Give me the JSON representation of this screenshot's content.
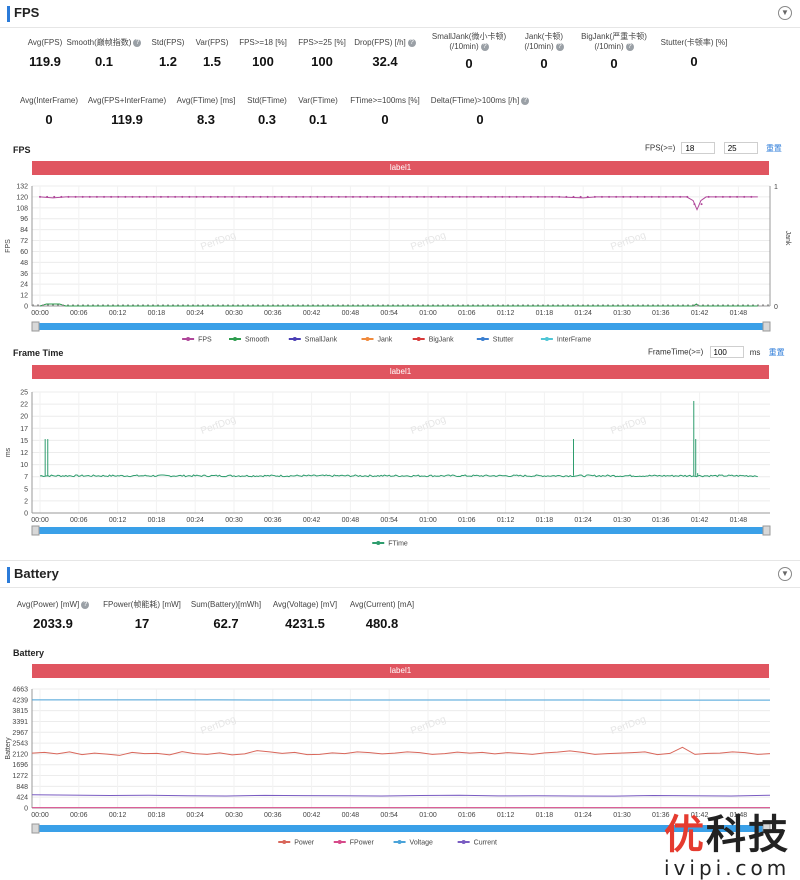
{
  "fps_section": {
    "title": "FPS",
    "collapse_icon": "chevron-down-icon"
  },
  "fps_metrics_row1": [
    {
      "label": "Avg(FPS)",
      "value": "119.9",
      "help": false
    },
    {
      "label": "Smooth(巅帧指数)",
      "value": "0.1",
      "help": true
    },
    {
      "label": "Std(FPS)",
      "value": "1.2",
      "help": false
    },
    {
      "label": "Var(FPS)",
      "value": "1.5",
      "help": false
    },
    {
      "label": "FPS>=18 [%]",
      "value": "100",
      "help": false
    },
    {
      "label": "FPS>=25 [%]",
      "value": "100",
      "help": false
    },
    {
      "label": "Drop(FPS) [/h]",
      "value": "32.4",
      "help": true
    },
    {
      "label": "SmallJank(微小卡顿)",
      "label2": "(/10min)",
      "value": "0",
      "help": true
    },
    {
      "label": "Jank(卡顿)",
      "label2": "(/10min)",
      "value": "0",
      "help": true
    },
    {
      "label": "BigJank(严重卡顿)",
      "label2": "(/10min)",
      "value": "0",
      "help": true
    },
    {
      "label": "Stutter(卡顿率) [%]",
      "value": "0",
      "help": false
    }
  ],
  "fps_metrics_row2": [
    {
      "label": "Avg(InterFrame)",
      "value": "0",
      "help": false
    },
    {
      "label": "Avg(FPS+InterFrame)",
      "value": "119.9",
      "help": false
    },
    {
      "label": "Avg(FTime) [ms]",
      "value": "8.3",
      "help": false
    },
    {
      "label": "Std(FTime)",
      "value": "0.3",
      "help": false
    },
    {
      "label": "Var(FTime)",
      "value": "0.1",
      "help": false
    },
    {
      "label": "FTime>=100ms [%]",
      "value": "0",
      "help": false
    },
    {
      "label": "Delta(FTime)>100ms [/h]",
      "value": "0",
      "help": true
    }
  ],
  "fps_chart": {
    "title": "FPS",
    "control_label": "FPS(>=)",
    "input1": "18",
    "input2": "25",
    "reset": "重置",
    "banner": "label1",
    "watermark": "PerfDog"
  },
  "frame_chart": {
    "title": "Frame Time",
    "control_label": "FrameTime(>=)",
    "input": "100",
    "unit": "ms",
    "reset": "重置",
    "banner": "label1"
  },
  "battery_section": {
    "title": "Battery",
    "collapse_icon": "chevron-down-icon"
  },
  "battery_metrics": [
    {
      "label": "Avg(Power) [mW]",
      "value": "2033.9",
      "help": true
    },
    {
      "label": "FPower(帧能耗) [mW]",
      "value": "17",
      "help": false
    },
    {
      "label": "Sum(Battery)[mWh]",
      "value": "62.7",
      "help": false
    },
    {
      "label": "Avg(Voltage) [mV]",
      "value": "4231.5",
      "help": false
    },
    {
      "label": "Avg(Current) [mA]",
      "value": "480.8",
      "help": false
    }
  ],
  "battery_chart": {
    "title": "Battery",
    "banner": "label1"
  },
  "logo": {
    "big_a": "优",
    "big_b": "科技",
    "small": "ivipi.com"
  },
  "chart_data": [
    {
      "type": "line",
      "title": "FPS",
      "ylabel": "FPS",
      "y2label": "Jank",
      "ylim": [
        0,
        132
      ],
      "yticks": [
        "0",
        "12",
        "24",
        "36",
        "48",
        "60",
        "72",
        "84",
        "96",
        "108",
        "120",
        "132"
      ],
      "y2ticks": [
        "0",
        "1"
      ],
      "y2lim": [
        0,
        1
      ],
      "xticks": [
        "00:00",
        "00:06",
        "00:12",
        "00:18",
        "00:24",
        "00:30",
        "00:36",
        "00:42",
        "00:48",
        "00:54",
        "01:00",
        "01:06",
        "01:12",
        "01:18",
        "01:24",
        "01:30",
        "01:36",
        "01:42",
        "01:48"
      ],
      "xlim_seconds": [
        0,
        111
      ],
      "grid": true,
      "legend_position": "bottom",
      "series": [
        {
          "name": "FPS",
          "color": "#b0479a",
          "points": [
            [
              0,
              120
            ],
            [
              2,
              119
            ],
            [
              4,
              120
            ],
            [
              10,
              120
            ],
            [
              20,
              120
            ],
            [
              30,
              120
            ],
            [
              40,
              120
            ],
            [
              50,
              120
            ],
            [
              60,
              120
            ],
            [
              70,
              120
            ],
            [
              80,
              120
            ],
            [
              84,
              119
            ],
            [
              86,
              120
            ],
            [
              95,
              120
            ],
            [
              100,
              120
            ],
            [
              101,
              116
            ],
            [
              101.6,
              106
            ],
            [
              102.2,
              116
            ],
            [
              103,
              120
            ],
            [
              110,
              120
            ],
            [
              111,
              120
            ]
          ]
        },
        {
          "name": "Smooth",
          "color": "#2e9d4e",
          "points": [
            [
              0,
              0
            ],
            [
              1,
              1
            ],
            [
              3,
              1
            ],
            [
              4,
              0
            ],
            [
              101,
              0
            ],
            [
              101.5,
              1
            ],
            [
              102,
              0
            ],
            [
              111,
              0
            ]
          ]
        },
        {
          "name": "SmallJank",
          "color": "#4a3fb5",
          "points": []
        },
        {
          "name": "Jank",
          "color": "#f08a3c",
          "points": []
        },
        {
          "name": "BigJank",
          "color": "#d83a3a",
          "points": []
        },
        {
          "name": "Stutter",
          "color": "#3b7fd1",
          "points": []
        },
        {
          "name": "InterFrame",
          "color": "#4fc6d6",
          "points": []
        }
      ]
    },
    {
      "type": "line",
      "title": "Frame Time",
      "ylabel": "ms",
      "ylim": [
        0,
        27
      ],
      "yticks": [
        "0",
        "2",
        "5",
        "7",
        "10",
        "12",
        "15",
        "17",
        "20",
        "22",
        "25"
      ],
      "xticks": [
        "00:00",
        "00:06",
        "00:12",
        "00:18",
        "00:24",
        "00:30",
        "00:36",
        "00:42",
        "00:48",
        "00:54",
        "01:00",
        "01:06",
        "01:12",
        "01:18",
        "01:24",
        "01:30",
        "01:36",
        "01:42",
        "01:48"
      ],
      "xlim_seconds": [
        0,
        111
      ],
      "grid": true,
      "legend_position": "bottom",
      "baseline_ms": 8.3,
      "spikes": [
        [
          0.8,
          16.5
        ],
        [
          1.2,
          16.5
        ],
        [
          82.5,
          16.5
        ],
        [
          101.1,
          25
        ],
        [
          101.4,
          16.5
        ],
        [
          101.7,
          8.9
        ]
      ],
      "series": [
        {
          "name": "FTime",
          "color": "#2e9d6e"
        }
      ]
    },
    {
      "type": "line",
      "title": "Battery",
      "ylabel": "Battery",
      "ylim": [
        0,
        4663
      ],
      "yticks": [
        "0",
        "424",
        "848",
        "1272",
        "1696",
        "2120",
        "2543",
        "2967",
        "3391",
        "3815",
        "4239",
        "4663"
      ],
      "xticks": [
        "00:00",
        "00:06",
        "00:12",
        "00:18",
        "00:24",
        "00:30",
        "00:36",
        "00:42",
        "00:48",
        "00:54",
        "01:00",
        "01:06",
        "01:12",
        "01:18",
        "01:24",
        "01:30",
        "01:36",
        "01:42",
        "01:48"
      ],
      "xlim_seconds": [
        0,
        111
      ],
      "grid": true,
      "legend_position": "bottom",
      "series": [
        {
          "name": "Power",
          "color": "#d9675b",
          "values_sampled": [
            2150,
            2180,
            2120,
            2200,
            2090,
            2150,
            2110,
            2060,
            2180,
            2130,
            2140,
            2080,
            2210,
            2130,
            2100,
            2160,
            2080,
            2120,
            2250,
            2200,
            2140,
            2180,
            2090,
            2100,
            2160,
            2130,
            2200,
            2170,
            2120,
            2150,
            2200,
            2170,
            2100,
            2130,
            2190,
            2150,
            2180,
            2120,
            2170,
            2140,
            2100,
            2160,
            2190,
            2240,
            2180,
            2100,
            2130,
            2150,
            2170,
            2200,
            2090,
            2140,
            2380,
            2100,
            2140,
            2150,
            2200,
            2170,
            2100,
            2130
          ]
        },
        {
          "name": "FPower",
          "color": "#d64a8a",
          "values_sampled": [
            17
          ]
        },
        {
          "name": "Voltage",
          "color": "#4aa3d9",
          "values_sampled": [
            4239,
            4235,
            4232,
            4230,
            4228
          ]
        },
        {
          "name": "Current",
          "color": "#7a5cc2",
          "values_sampled": [
            520,
            505,
            490,
            500,
            480,
            470,
            495,
            485,
            480,
            470,
            490,
            500,
            475,
            480,
            470,
            465,
            490,
            480,
            470,
            500
          ]
        }
      ]
    }
  ]
}
